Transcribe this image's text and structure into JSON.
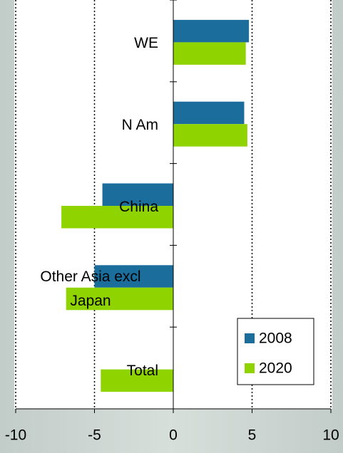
{
  "chart_data": {
    "type": "bar",
    "orientation": "horizontal",
    "categories": [
      "WE",
      "N Am",
      "China",
      "Other Asia excl Japan",
      "Total"
    ],
    "series": [
      {
        "name": "2008",
        "color": "#1b6e9c",
        "values": [
          4.8,
          4.5,
          -4.5,
          -5.0,
          null
        ]
      },
      {
        "name": "2020",
        "color": "#8fd400",
        "values": [
          4.6,
          4.7,
          -7.1,
          -6.8,
          -4.6
        ]
      }
    ],
    "xlim": [
      -10,
      10
    ],
    "xticks": [
      -10,
      -5,
      0,
      5,
      10
    ],
    "grid": true,
    "legend": "lower right"
  }
}
